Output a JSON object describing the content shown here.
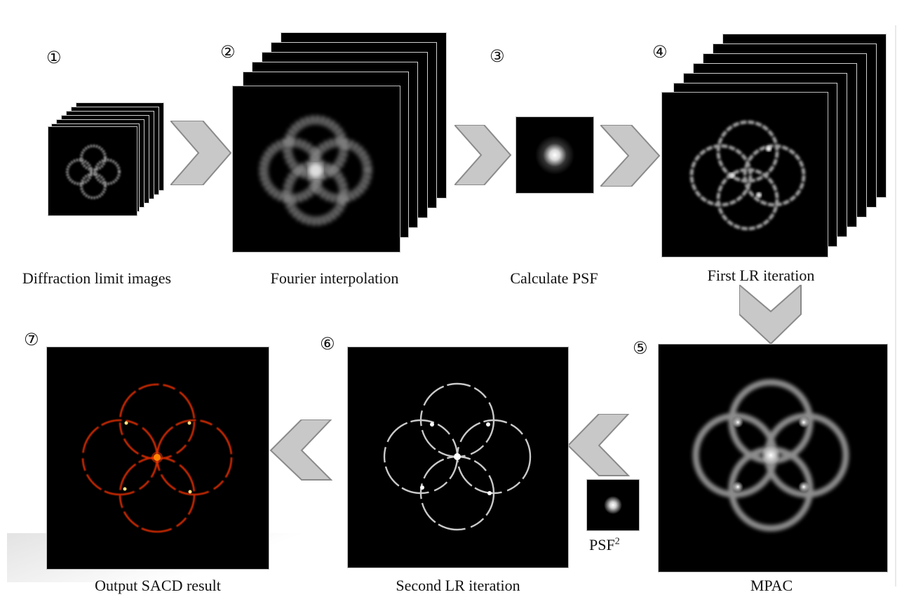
{
  "steps": [
    {
      "num": "①",
      "label": "Diffraction limit images"
    },
    {
      "num": "②",
      "label": "Fourier interpolation"
    },
    {
      "num": "③",
      "label": "Calculate PSF"
    },
    {
      "num": "④",
      "label": "First LR iteration"
    },
    {
      "num": "⑤",
      "label": "MPAC"
    },
    {
      "num": "⑥",
      "label": "Second LR iteration"
    },
    {
      "num": "⑦",
      "label": "Output SACD result"
    }
  ],
  "psf2": {
    "base": "PSF",
    "exp": "2"
  },
  "colors": {
    "arrow": "#c8c8c8",
    "arrow_edge": "#8a8a8a",
    "background": "#ffffff",
    "panel": "#000000",
    "hot": "#ff3a00"
  }
}
